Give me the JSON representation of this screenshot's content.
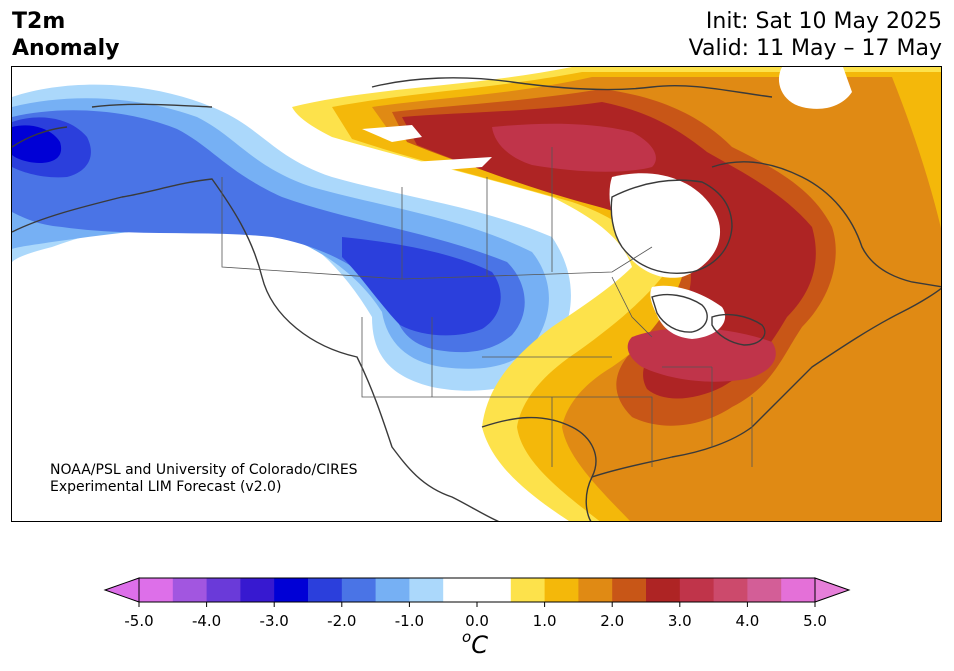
{
  "title": {
    "line1": "T2m",
    "line2": "Anomaly"
  },
  "run": {
    "init": "Init: Sat 10 May 2025",
    "valid": "Valid: 11 May – 17 May"
  },
  "credit": {
    "line1": "NOAA/PSL and University of Colorado/CIRES",
    "line2": "Experimental LIM Forecast (v2.0)"
  },
  "colorbar": {
    "ticks": [
      "-5.0",
      "-4.0",
      "-3.0",
      "-2.0",
      "-1.0",
      "0.0",
      "1.0",
      "2.0",
      "3.0",
      "4.0",
      "5.0"
    ],
    "colors": [
      "#dd6fe9",
      "#a256e0",
      "#6a3ad9",
      "#3719d0",
      "#0000d6",
      "#2b3fdc",
      "#4a74e6",
      "#76b0f4",
      "#abd8fb",
      "#ffffff",
      "#ffffff",
      "#fde24b",
      "#f4b80a",
      "#e08a14",
      "#c85617",
      "#ae2424",
      "#c0344a",
      "#cc4a6c",
      "#d35e97",
      "#e470d8"
    ],
    "under_color": "#dd6fe9",
    "over_color": "#e67fd9",
    "unit_base": "C",
    "unit_super": "o"
  }
}
